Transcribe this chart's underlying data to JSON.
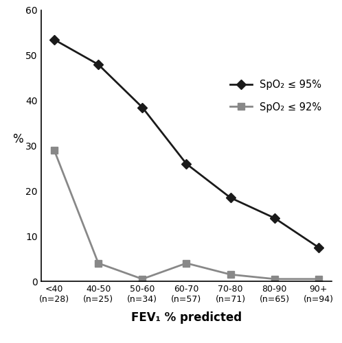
{
  "categories": [
    "<40\n(n=28)",
    "40-50\n(n=25)",
    "50-60\n(n=34)",
    "60-70\n(n=57)",
    "70-80\n(n=71)",
    "80-90\n(n=65)",
    "90+\n(n=94)"
  ],
  "x": [
    0,
    1,
    2,
    3,
    4,
    5,
    6
  ],
  "series1_values": [
    53.5,
    48.0,
    38.5,
    26.0,
    18.5,
    14.0,
    7.5
  ],
  "series2_values": [
    29.0,
    4.0,
    0.5,
    4.0,
    1.5,
    0.5,
    0.5
  ],
  "series1_label": "SpO₂ ≤ 95%",
  "series2_label": "SpO₂ ≤ 92%",
  "series1_color": "#1a1a1a",
  "series2_color": "#888888",
  "series1_marker": "D",
  "series2_marker": "s",
  "ylabel": "%",
  "xlabel": "FEV₁ % predicted",
  "ylim": [
    0,
    60
  ],
  "yticks": [
    0,
    10,
    20,
    30,
    40,
    50,
    60
  ],
  "background_color": "#ffffff",
  "linewidth": 2.0,
  "markersize": 7
}
